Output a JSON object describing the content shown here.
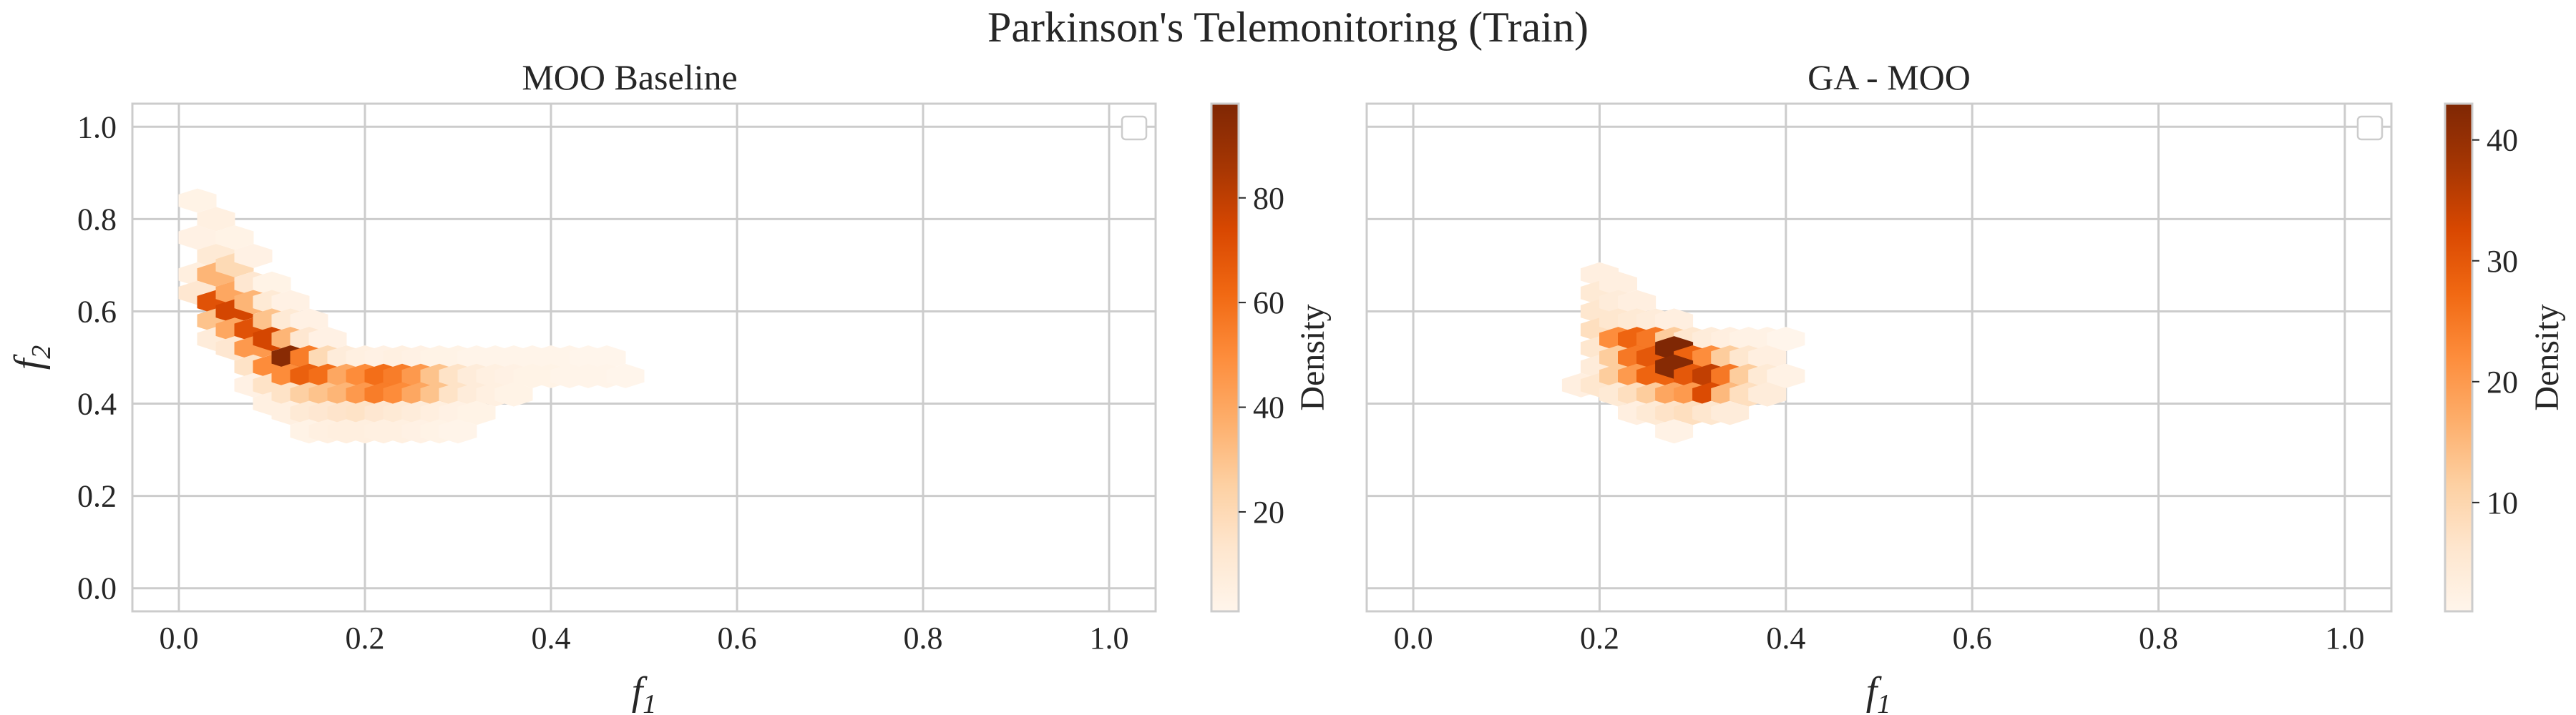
{
  "title": "Parkinson's Telemonitoring (Train)",
  "axes_labels": {
    "x_main": "f",
    "x_sub": "1",
    "y_main": "f",
    "y_sub": "2"
  },
  "chart_data": [
    {
      "type": "heatmap",
      "subtype": "hexbin",
      "title": "MOO Baseline",
      "xlabel": "f1",
      "ylabel": "f2",
      "xlim": [
        -0.05,
        1.05
      ],
      "ylim": [
        -0.05,
        1.05
      ],
      "xticks": [
        0.0,
        0.2,
        0.4,
        0.6,
        0.8,
        1.0
      ],
      "yticks": [
        0.0,
        0.2,
        0.4,
        0.6,
        0.8,
        1.0
      ],
      "x_tick_labels": [
        "0.0",
        "0.2",
        "0.4",
        "0.6",
        "0.8",
        "1.0"
      ],
      "y_tick_labels": [
        "0.0",
        "0.2",
        "0.4",
        "0.6",
        "0.8",
        "1.0"
      ],
      "grid": true,
      "legend": "top-right (empty)",
      "colormap": "Oranges",
      "colorbar": {
        "label": "Density",
        "range": [
          1,
          98
        ],
        "ticks": [
          20,
          40,
          60,
          80
        ],
        "tick_labels": [
          "20",
          "40",
          "60",
          "80"
        ]
      },
      "bins": [
        {
          "x": 0.02,
          "y": 0.84,
          "v": 3
        },
        {
          "x": 0.04,
          "y": 0.8,
          "v": 5
        },
        {
          "x": 0.02,
          "y": 0.76,
          "v": 4
        },
        {
          "x": 0.04,
          "y": 0.72,
          "v": 10
        },
        {
          "x": 0.06,
          "y": 0.76,
          "v": 3
        },
        {
          "x": 0.02,
          "y": 0.68,
          "v": 6
        },
        {
          "x": 0.04,
          "y": 0.68,
          "v": 35
        },
        {
          "x": 0.06,
          "y": 0.7,
          "v": 20
        },
        {
          "x": 0.08,
          "y": 0.72,
          "v": 4
        },
        {
          "x": 0.02,
          "y": 0.64,
          "v": 12
        },
        {
          "x": 0.04,
          "y": 0.62,
          "v": 70
        },
        {
          "x": 0.06,
          "y": 0.64,
          "v": 40
        },
        {
          "x": 0.08,
          "y": 0.66,
          "v": 12
        },
        {
          "x": 0.1,
          "y": 0.66,
          "v": 3
        },
        {
          "x": 0.04,
          "y": 0.58,
          "v": 30
        },
        {
          "x": 0.06,
          "y": 0.6,
          "v": 75
        },
        {
          "x": 0.08,
          "y": 0.62,
          "v": 35
        },
        {
          "x": 0.1,
          "y": 0.62,
          "v": 10
        },
        {
          "x": 0.12,
          "y": 0.62,
          "v": 4
        },
        {
          "x": 0.04,
          "y": 0.54,
          "v": 8
        },
        {
          "x": 0.06,
          "y": 0.56,
          "v": 40
        },
        {
          "x": 0.08,
          "y": 0.56,
          "v": 70
        },
        {
          "x": 0.1,
          "y": 0.58,
          "v": 30
        },
        {
          "x": 0.12,
          "y": 0.58,
          "v": 10
        },
        {
          "x": 0.14,
          "y": 0.58,
          "v": 4
        },
        {
          "x": 0.06,
          "y": 0.52,
          "v": 12
        },
        {
          "x": 0.08,
          "y": 0.52,
          "v": 45
        },
        {
          "x": 0.1,
          "y": 0.54,
          "v": 75
        },
        {
          "x": 0.12,
          "y": 0.54,
          "v": 35
        },
        {
          "x": 0.14,
          "y": 0.54,
          "v": 12
        },
        {
          "x": 0.16,
          "y": 0.54,
          "v": 4
        },
        {
          "x": 0.08,
          "y": 0.48,
          "v": 15
        },
        {
          "x": 0.1,
          "y": 0.48,
          "v": 50
        },
        {
          "x": 0.12,
          "y": 0.5,
          "v": 95
        },
        {
          "x": 0.14,
          "y": 0.5,
          "v": 55
        },
        {
          "x": 0.16,
          "y": 0.5,
          "v": 20
        },
        {
          "x": 0.18,
          "y": 0.5,
          "v": 8
        },
        {
          "x": 0.2,
          "y": 0.5,
          "v": 5
        },
        {
          "x": 0.22,
          "y": 0.5,
          "v": 4
        },
        {
          "x": 0.24,
          "y": 0.5,
          "v": 5
        },
        {
          "x": 0.26,
          "y": 0.5,
          "v": 4
        },
        {
          "x": 0.28,
          "y": 0.5,
          "v": 3
        },
        {
          "x": 0.3,
          "y": 0.5,
          "v": 3
        },
        {
          "x": 0.32,
          "y": 0.5,
          "v": 2
        },
        {
          "x": 0.34,
          "y": 0.5,
          "v": 2
        },
        {
          "x": 0.36,
          "y": 0.5,
          "v": 2
        },
        {
          "x": 0.38,
          "y": 0.5,
          "v": 2
        },
        {
          "x": 0.4,
          "y": 0.5,
          "v": 2
        },
        {
          "x": 0.42,
          "y": 0.5,
          "v": 2
        },
        {
          "x": 0.44,
          "y": 0.5,
          "v": 1
        },
        {
          "x": 0.46,
          "y": 0.5,
          "v": 1
        },
        {
          "x": 0.08,
          "y": 0.44,
          "v": 4
        },
        {
          "x": 0.1,
          "y": 0.44,
          "v": 15
        },
        {
          "x": 0.12,
          "y": 0.46,
          "v": 50
        },
        {
          "x": 0.14,
          "y": 0.46,
          "v": 65
        },
        {
          "x": 0.16,
          "y": 0.46,
          "v": 60
        },
        {
          "x": 0.18,
          "y": 0.46,
          "v": 40
        },
        {
          "x": 0.2,
          "y": 0.46,
          "v": 50
        },
        {
          "x": 0.22,
          "y": 0.46,
          "v": 60
        },
        {
          "x": 0.24,
          "y": 0.46,
          "v": 55
        },
        {
          "x": 0.26,
          "y": 0.46,
          "v": 45
        },
        {
          "x": 0.28,
          "y": 0.46,
          "v": 30
        },
        {
          "x": 0.3,
          "y": 0.46,
          "v": 15
        },
        {
          "x": 0.32,
          "y": 0.46,
          "v": 8
        },
        {
          "x": 0.34,
          "y": 0.46,
          "v": 5
        },
        {
          "x": 0.36,
          "y": 0.46,
          "v": 4
        },
        {
          "x": 0.38,
          "y": 0.46,
          "v": 3
        },
        {
          "x": 0.4,
          "y": 0.46,
          "v": 3
        },
        {
          "x": 0.42,
          "y": 0.46,
          "v": 2
        },
        {
          "x": 0.44,
          "y": 0.46,
          "v": 2
        },
        {
          "x": 0.46,
          "y": 0.46,
          "v": 2
        },
        {
          "x": 0.48,
          "y": 0.46,
          "v": 1
        },
        {
          "x": 0.1,
          "y": 0.4,
          "v": 5
        },
        {
          "x": 0.12,
          "y": 0.42,
          "v": 15
        },
        {
          "x": 0.14,
          "y": 0.42,
          "v": 25
        },
        {
          "x": 0.16,
          "y": 0.42,
          "v": 30
        },
        {
          "x": 0.18,
          "y": 0.42,
          "v": 35
        },
        {
          "x": 0.2,
          "y": 0.42,
          "v": 45
        },
        {
          "x": 0.22,
          "y": 0.42,
          "v": 55
        },
        {
          "x": 0.24,
          "y": 0.42,
          "v": 50
        },
        {
          "x": 0.26,
          "y": 0.42,
          "v": 40
        },
        {
          "x": 0.28,
          "y": 0.42,
          "v": 30
        },
        {
          "x": 0.3,
          "y": 0.42,
          "v": 15
        },
        {
          "x": 0.32,
          "y": 0.42,
          "v": 8
        },
        {
          "x": 0.34,
          "y": 0.42,
          "v": 5
        },
        {
          "x": 0.36,
          "y": 0.42,
          "v": 3
        },
        {
          "x": 0.12,
          "y": 0.38,
          "v": 5
        },
        {
          "x": 0.14,
          "y": 0.38,
          "v": 10
        },
        {
          "x": 0.16,
          "y": 0.38,
          "v": 12
        },
        {
          "x": 0.18,
          "y": 0.38,
          "v": 14
        },
        {
          "x": 0.2,
          "y": 0.38,
          "v": 15
        },
        {
          "x": 0.22,
          "y": 0.38,
          "v": 12
        },
        {
          "x": 0.24,
          "y": 0.38,
          "v": 10
        },
        {
          "x": 0.26,
          "y": 0.38,
          "v": 8
        },
        {
          "x": 0.28,
          "y": 0.38,
          "v": 6
        },
        {
          "x": 0.3,
          "y": 0.38,
          "v": 4
        },
        {
          "x": 0.32,
          "y": 0.38,
          "v": 3
        },
        {
          "x": 0.14,
          "y": 0.34,
          "v": 3
        },
        {
          "x": 0.16,
          "y": 0.34,
          "v": 5
        },
        {
          "x": 0.18,
          "y": 0.34,
          "v": 6
        },
        {
          "x": 0.2,
          "y": 0.34,
          "v": 6
        },
        {
          "x": 0.22,
          "y": 0.34,
          "v": 5
        },
        {
          "x": 0.24,
          "y": 0.34,
          "v": 5
        },
        {
          "x": 0.26,
          "y": 0.34,
          "v": 4
        },
        {
          "x": 0.28,
          "y": 0.34,
          "v": 3
        },
        {
          "x": 0.3,
          "y": 0.34,
          "v": 2
        }
      ]
    },
    {
      "type": "heatmap",
      "subtype": "hexbin",
      "title": "GA - MOO",
      "xlabel": "f1",
      "ylabel": "f2",
      "xlim": [
        -0.05,
        1.05
      ],
      "ylim": [
        -0.05,
        1.05
      ],
      "xticks": [
        0.0,
        0.2,
        0.4,
        0.6,
        0.8,
        1.0
      ],
      "yticks": [
        0.0,
        0.2,
        0.4,
        0.6,
        0.8,
        1.0
      ],
      "x_tick_labels": [
        "0.0",
        "0.2",
        "0.4",
        "0.6",
        "0.8",
        "1.0"
      ],
      "y_tick_labels": [],
      "grid": true,
      "legend": "top-right (empty)",
      "colormap": "Oranges",
      "colorbar": {
        "label": "Density",
        "range": [
          1,
          43
        ],
        "ticks": [
          10,
          20,
          30,
          40
        ],
        "tick_labels": [
          "10",
          "20",
          "30",
          "40"
        ]
      },
      "bins": [
        {
          "x": 0.2,
          "y": 0.68,
          "v": 3
        },
        {
          "x": 0.2,
          "y": 0.64,
          "v": 5
        },
        {
          "x": 0.22,
          "y": 0.66,
          "v": 3
        },
        {
          "x": 0.2,
          "y": 0.6,
          "v": 6
        },
        {
          "x": 0.22,
          "y": 0.62,
          "v": 4
        },
        {
          "x": 0.24,
          "y": 0.62,
          "v": 3
        },
        {
          "x": 0.2,
          "y": 0.56,
          "v": 8
        },
        {
          "x": 0.22,
          "y": 0.58,
          "v": 6
        },
        {
          "x": 0.24,
          "y": 0.58,
          "v": 5
        },
        {
          "x": 0.26,
          "y": 0.58,
          "v": 4
        },
        {
          "x": 0.28,
          "y": 0.58,
          "v": 3
        },
        {
          "x": 0.2,
          "y": 0.52,
          "v": 6
        },
        {
          "x": 0.22,
          "y": 0.54,
          "v": 22
        },
        {
          "x": 0.24,
          "y": 0.54,
          "v": 28
        },
        {
          "x": 0.26,
          "y": 0.54,
          "v": 25
        },
        {
          "x": 0.28,
          "y": 0.54,
          "v": 12
        },
        {
          "x": 0.3,
          "y": 0.54,
          "v": 6
        },
        {
          "x": 0.32,
          "y": 0.54,
          "v": 4
        },
        {
          "x": 0.34,
          "y": 0.54,
          "v": 3
        },
        {
          "x": 0.36,
          "y": 0.54,
          "v": 2
        },
        {
          "x": 0.38,
          "y": 0.54,
          "v": 2
        },
        {
          "x": 0.4,
          "y": 0.54,
          "v": 1
        },
        {
          "x": 0.2,
          "y": 0.48,
          "v": 4
        },
        {
          "x": 0.22,
          "y": 0.5,
          "v": 12
        },
        {
          "x": 0.24,
          "y": 0.5,
          "v": 25
        },
        {
          "x": 0.26,
          "y": 0.5,
          "v": 30
        },
        {
          "x": 0.28,
          "y": 0.52,
          "v": 43
        },
        {
          "x": 0.3,
          "y": 0.5,
          "v": 28
        },
        {
          "x": 0.32,
          "y": 0.5,
          "v": 22
        },
        {
          "x": 0.34,
          "y": 0.5,
          "v": 12
        },
        {
          "x": 0.36,
          "y": 0.5,
          "v": 6
        },
        {
          "x": 0.38,
          "y": 0.5,
          "v": 3
        },
        {
          "x": 0.18,
          "y": 0.44,
          "v": 3
        },
        {
          "x": 0.2,
          "y": 0.44,
          "v": 6
        },
        {
          "x": 0.22,
          "y": 0.46,
          "v": 12
        },
        {
          "x": 0.24,
          "y": 0.46,
          "v": 20
        },
        {
          "x": 0.26,
          "y": 0.46,
          "v": 28
        },
        {
          "x": 0.28,
          "y": 0.48,
          "v": 42
        },
        {
          "x": 0.3,
          "y": 0.46,
          "v": 30
        },
        {
          "x": 0.32,
          "y": 0.46,
          "v": 35
        },
        {
          "x": 0.34,
          "y": 0.46,
          "v": 25
        },
        {
          "x": 0.36,
          "y": 0.46,
          "v": 12
        },
        {
          "x": 0.38,
          "y": 0.46,
          "v": 5
        },
        {
          "x": 0.4,
          "y": 0.46,
          "v": 2
        },
        {
          "x": 0.22,
          "y": 0.42,
          "v": 5
        },
        {
          "x": 0.24,
          "y": 0.42,
          "v": 8
        },
        {
          "x": 0.26,
          "y": 0.42,
          "v": 12
        },
        {
          "x": 0.28,
          "y": 0.42,
          "v": 18
        },
        {
          "x": 0.3,
          "y": 0.42,
          "v": 20
        },
        {
          "x": 0.32,
          "y": 0.42,
          "v": 32
        },
        {
          "x": 0.34,
          "y": 0.42,
          "v": 15
        },
        {
          "x": 0.36,
          "y": 0.42,
          "v": 8
        },
        {
          "x": 0.38,
          "y": 0.42,
          "v": 4
        },
        {
          "x": 0.24,
          "y": 0.38,
          "v": 3
        },
        {
          "x": 0.26,
          "y": 0.38,
          "v": 5
        },
        {
          "x": 0.28,
          "y": 0.38,
          "v": 7
        },
        {
          "x": 0.3,
          "y": 0.38,
          "v": 8
        },
        {
          "x": 0.32,
          "y": 0.38,
          "v": 6
        },
        {
          "x": 0.34,
          "y": 0.38,
          "v": 4
        },
        {
          "x": 0.28,
          "y": 0.34,
          "v": 2
        }
      ]
    }
  ]
}
